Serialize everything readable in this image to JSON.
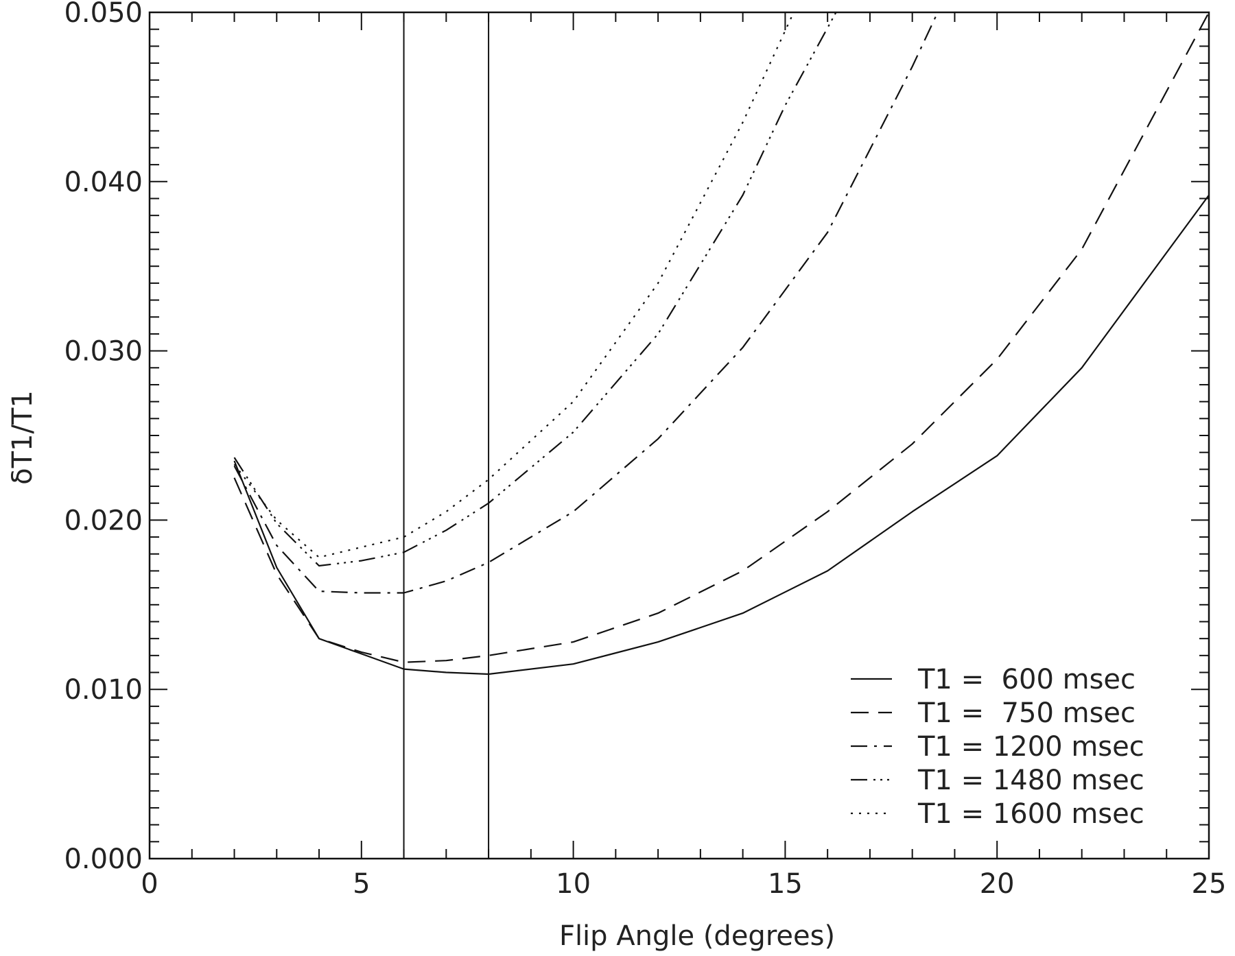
{
  "chart_data": {
    "type": "line",
    "title": "",
    "xlabel": "Flip Angle (degrees)",
    "ylabel": "δT1/T1",
    "xlim": [
      0,
      25
    ],
    "ylim": [
      0,
      0.05
    ],
    "x_ticks": [
      0,
      5,
      10,
      15,
      20,
      25
    ],
    "x_tick_labels": [
      "0",
      "5",
      "10",
      "15",
      "20",
      "25"
    ],
    "y_ticks": [
      0,
      0.01,
      0.02,
      0.03,
      0.04,
      0.05
    ],
    "y_tick_labels": [
      "0.000",
      "0.010",
      "0.020",
      "0.030",
      "0.040",
      "0.050"
    ],
    "grid": false,
    "legend_position": "bottom-right",
    "line_color": "#111111",
    "vertical_reference_lines": [
      6,
      8
    ],
    "series": [
      {
        "name": "T1 = 600 msec",
        "legend_label": "T1 =  600 msec",
        "dash": "solid",
        "x": [
          2,
          3,
          4,
          5,
          6,
          7,
          8,
          10,
          12,
          14,
          16,
          18,
          20,
          22,
          25
        ],
        "y": [
          0.0235,
          0.0172,
          0.013,
          0.0121,
          0.0112,
          0.011,
          0.0109,
          0.0115,
          0.0128,
          0.0145,
          0.017,
          0.0205,
          0.0238,
          0.029,
          0.0392
        ]
      },
      {
        "name": "T1 = 750 msec",
        "legend_label": "T1 =  750 msec",
        "dash": "dashed",
        "x": [
          2,
          3,
          4,
          5,
          6,
          7,
          8,
          10,
          12,
          14,
          16,
          18,
          20,
          22,
          25
        ],
        "y": [
          0.0225,
          0.0168,
          0.013,
          0.0122,
          0.0116,
          0.0117,
          0.012,
          0.0128,
          0.0145,
          0.017,
          0.0205,
          0.0245,
          0.0295,
          0.036,
          0.05
        ]
      },
      {
        "name": "T1 = 1200 msec",
        "legend_label": "T1 = 1200 msec",
        "dash": "dashdot",
        "x": [
          2,
          3,
          4,
          5,
          6,
          7,
          8,
          10,
          12,
          14,
          16,
          18,
          18.6
        ],
        "y": [
          0.0232,
          0.0185,
          0.0158,
          0.0157,
          0.0157,
          0.0164,
          0.0175,
          0.0205,
          0.0248,
          0.0302,
          0.037,
          0.0468,
          0.05
        ]
      },
      {
        "name": "T1 = 1480 msec",
        "legend_label": "T1 = 1480 msec",
        "dash": "dashdotdotdot",
        "x": [
          2,
          3,
          4,
          5,
          6,
          7,
          8,
          10,
          12,
          14,
          15,
          16.2
        ],
        "y": [
          0.0237,
          0.0198,
          0.0173,
          0.0176,
          0.0181,
          0.0194,
          0.021,
          0.0252,
          0.031,
          0.0392,
          0.0445,
          0.05
        ]
      },
      {
        "name": "T1 = 1600 msec",
        "legend_label": "T1 = 1600 msec",
        "dash": "dotted",
        "x": [
          2,
          3,
          4,
          5,
          6,
          7,
          8,
          10,
          12,
          14,
          15.2
        ],
        "y": [
          0.0233,
          0.02,
          0.0178,
          0.0184,
          0.019,
          0.0205,
          0.0224,
          0.027,
          0.034,
          0.0435,
          0.05
        ]
      }
    ]
  }
}
